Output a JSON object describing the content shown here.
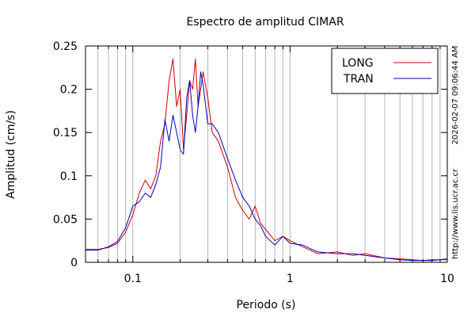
{
  "chart_data": {
    "type": "line",
    "title": "Espectro de amplitud CIMAR",
    "xlabel": "Periodo (s)",
    "ylabel": "Amplitud (cm/s)",
    "x_scale": "log",
    "xlim": [
      0.05,
      10
    ],
    "ylim": [
      0,
      0.25
    ],
    "x_ticks": [
      {
        "value": 0.1,
        "label": "0.1"
      },
      {
        "value": 1,
        "label": "1"
      },
      {
        "value": 10,
        "label": "10"
      }
    ],
    "y_ticks": [
      {
        "value": 0,
        "label": "0"
      },
      {
        "value": 0.05,
        "label": "0.05"
      },
      {
        "value": 0.1,
        "label": "0.1"
      },
      {
        "value": 0.15,
        "label": "0.15"
      },
      {
        "value": 0.2,
        "label": "0.2"
      },
      {
        "value": 0.25,
        "label": "0.25"
      }
    ],
    "grid": "x-log",
    "legend": "top-right",
    "series": [
      {
        "name": "LONG",
        "color": "#cc0000",
        "x": [
          0.05,
          0.06,
          0.07,
          0.08,
          0.09,
          0.1,
          0.11,
          0.12,
          0.13,
          0.14,
          0.15,
          0.16,
          0.17,
          0.18,
          0.19,
          0.2,
          0.21,
          0.22,
          0.23,
          0.24,
          0.25,
          0.26,
          0.27,
          0.28,
          0.3,
          0.32,
          0.35,
          0.4,
          0.45,
          0.5,
          0.55,
          0.6,
          0.65,
          0.7,
          0.8,
          0.9,
          1.0,
          1.2,
          1.5,
          2.0,
          2.5,
          3.0,
          4.0,
          5.0,
          6.0,
          7.0,
          8.0,
          10.0
        ],
        "y": [
          0.015,
          0.015,
          0.017,
          0.022,
          0.035,
          0.055,
          0.08,
          0.095,
          0.085,
          0.1,
          0.14,
          0.16,
          0.21,
          0.235,
          0.18,
          0.2,
          0.13,
          0.17,
          0.21,
          0.2,
          0.235,
          0.18,
          0.2,
          0.22,
          0.19,
          0.15,
          0.14,
          0.11,
          0.075,
          0.06,
          0.05,
          0.065,
          0.045,
          0.038,
          0.025,
          0.03,
          0.025,
          0.018,
          0.01,
          0.012,
          0.008,
          0.01,
          0.005,
          0.004,
          0.003,
          0.002,
          0.003,
          0.003
        ]
      },
      {
        "name": "TRAN",
        "color": "#0000bb",
        "x": [
          0.05,
          0.06,
          0.07,
          0.08,
          0.09,
          0.1,
          0.11,
          0.12,
          0.13,
          0.14,
          0.15,
          0.16,
          0.17,
          0.18,
          0.19,
          0.2,
          0.21,
          0.22,
          0.23,
          0.24,
          0.25,
          0.26,
          0.27,
          0.28,
          0.3,
          0.32,
          0.35,
          0.4,
          0.45,
          0.5,
          0.55,
          0.6,
          0.65,
          0.7,
          0.8,
          0.9,
          1.0,
          1.2,
          1.5,
          2.0,
          2.5,
          3.0,
          4.0,
          5.0,
          6.0,
          7.0,
          8.0,
          10.0
        ],
        "y": [
          0.014,
          0.014,
          0.018,
          0.024,
          0.04,
          0.065,
          0.07,
          0.08,
          0.075,
          0.09,
          0.11,
          0.165,
          0.14,
          0.17,
          0.15,
          0.13,
          0.125,
          0.19,
          0.21,
          0.17,
          0.15,
          0.18,
          0.22,
          0.205,
          0.16,
          0.16,
          0.15,
          0.12,
          0.095,
          0.075,
          0.065,
          0.05,
          0.042,
          0.03,
          0.02,
          0.03,
          0.022,
          0.02,
          0.012,
          0.01,
          0.01,
          0.008,
          0.005,
          0.003,
          0.002,
          0.002,
          0.002,
          0.004
        ]
      }
    ]
  },
  "side_labels": {
    "timestamp": "2026-02-07 09:06:44 AM",
    "url": "http://www.lis.ucr.ac.cr"
  }
}
